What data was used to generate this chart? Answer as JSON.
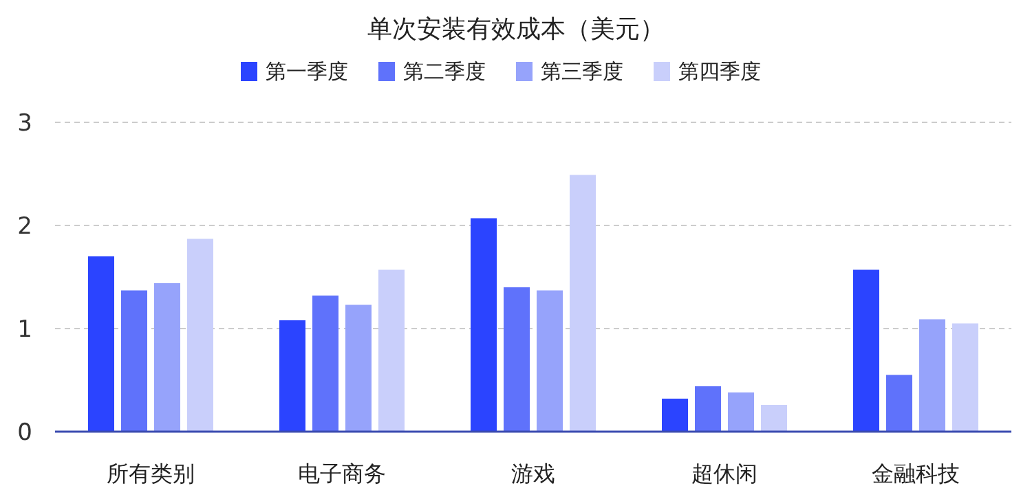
{
  "chart_data": {
    "type": "bar",
    "title": "单次安装有效成本（美元）",
    "categories": [
      "所有类别",
      "电子商务",
      "游戏",
      "超休闲",
      "金融科技"
    ],
    "series": [
      {
        "name": "第一季度",
        "color": "#2b44ff",
        "values": [
          1.7,
          1.08,
          2.07,
          0.32,
          1.57
        ]
      },
      {
        "name": "第二季度",
        "color": "#5f72fb",
        "values": [
          1.37,
          1.32,
          1.4,
          0.44,
          0.55
        ]
      },
      {
        "name": "第三季度",
        "color": "#96a3fb",
        "values": [
          1.44,
          1.23,
          1.37,
          0.38,
          1.09
        ]
      },
      {
        "name": "第四季度",
        "color": "#c9cffb",
        "values": [
          1.87,
          1.57,
          2.49,
          0.26,
          1.05
        ]
      }
    ],
    "ylim": [
      0,
      3
    ],
    "yticks": [
      0,
      1,
      2,
      3
    ],
    "grid": "y",
    "legend": "top"
  }
}
